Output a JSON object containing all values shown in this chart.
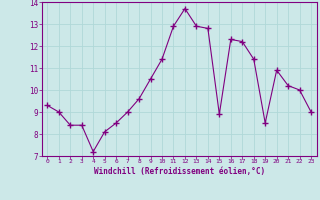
{
  "x": [
    0,
    1,
    2,
    3,
    4,
    5,
    6,
    7,
    8,
    9,
    10,
    11,
    12,
    13,
    14,
    15,
    16,
    17,
    18,
    19,
    20,
    21,
    22,
    23
  ],
  "y": [
    9.3,
    9.0,
    8.4,
    8.4,
    7.2,
    8.1,
    8.5,
    9.0,
    9.6,
    10.5,
    11.4,
    12.9,
    13.7,
    12.9,
    12.8,
    8.9,
    12.3,
    12.2,
    11.4,
    8.5,
    10.9,
    10.2,
    10.0,
    9.0
  ],
  "line_color": "#800080",
  "marker": "+",
  "marker_size": 4,
  "bg_color": "#cce8e8",
  "grid_color": "#b0d8d8",
  "xlabel": "Windchill (Refroidissement éolien,°C)",
  "xlabel_color": "#800080",
  "tick_color": "#800080",
  "spine_color": "#800080",
  "ylim": [
    7,
    14
  ],
  "xlim": [
    -0.5,
    23.5
  ],
  "yticks": [
    7,
    8,
    9,
    10,
    11,
    12,
    13,
    14
  ],
  "xticks": [
    0,
    1,
    2,
    3,
    4,
    5,
    6,
    7,
    8,
    9,
    10,
    11,
    12,
    13,
    14,
    15,
    16,
    17,
    18,
    19,
    20,
    21,
    22,
    23
  ],
  "figsize": [
    3.2,
    2.0
  ],
  "dpi": 100
}
